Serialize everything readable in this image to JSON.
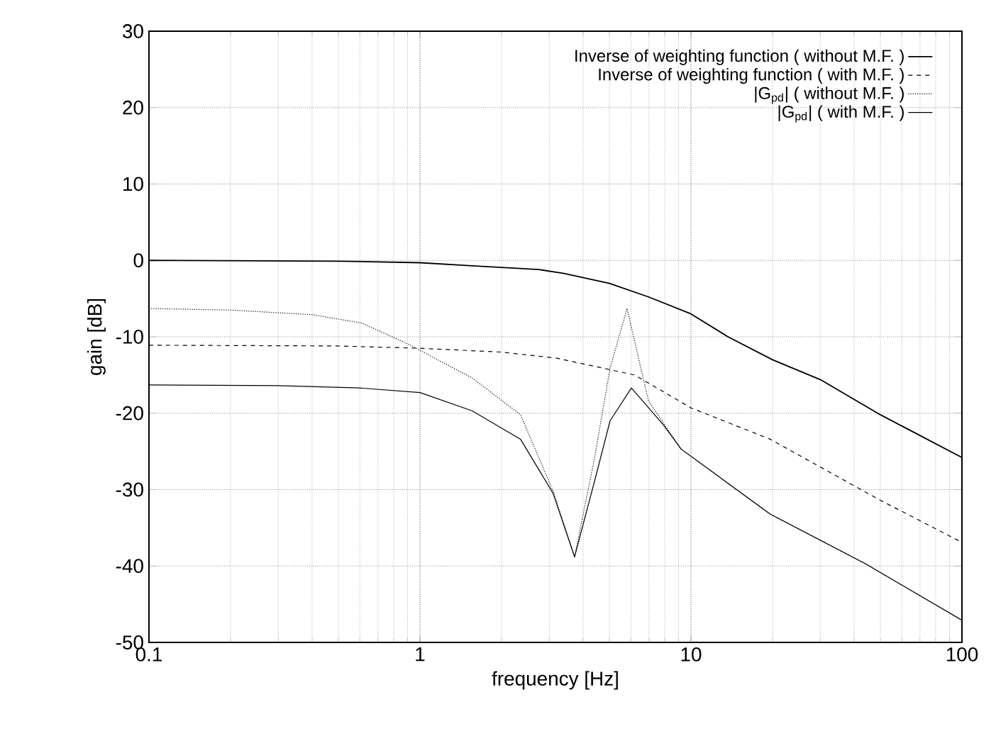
{
  "chart_data": {
    "type": "line",
    "xlabel": "frequency [Hz]",
    "ylabel": "gain [dB]",
    "log": "x",
    "grid": true,
    "legend": "top right",
    "marker": "none",
    "xlim": [
      0.1,
      100
    ],
    "xticks": [
      0.1,
      1,
      10,
      100
    ],
    "ylim": [
      -50,
      30
    ],
    "yticks": [
      -50,
      -40,
      -30,
      -20,
      -10,
      0,
      10,
      20,
      30
    ],
    "series": [
      {
        "name": "Inverse of weighting function ( without M.F. )",
        "color": "#000000",
        "line_style": "solid",
        "x": [
          0.1,
          0.5,
          1,
          1.56,
          2.75,
          3.4,
          5,
          7,
          10,
          13.7,
          20,
          30,
          50,
          100
        ],
        "values": [
          0,
          -0.1,
          -0.3,
          -0.7,
          -1.2,
          -1.7,
          -3,
          -4.8,
          -7,
          -10,
          -13,
          -15.6,
          -20.2,
          -25.8
        ]
      },
      {
        "name": "Inverse of weighting function ( with M.F. )",
        "color": "#000000",
        "line_style": "dashed",
        "x": [
          0.1,
          0.5,
          1,
          2,
          3.2,
          6.2,
          10,
          19.6,
          50,
          100
        ],
        "values": [
          -11.1,
          -11.2,
          -11.5,
          -12,
          -12.8,
          -15,
          -19.3,
          -23.4,
          -31.4,
          -36.9
        ]
      },
      {
        "name": "|G$_{pd}$| ( without M.F. )",
        "color": "#000000",
        "line_style": "dotted",
        "x": [
          0.1,
          0.2,
          0.4,
          0.61,
          0.91,
          1.56,
          2.35,
          3.1,
          3.72,
          4.4,
          5.03,
          5.81,
          6.97,
          9.2,
          19.6,
          44,
          100
        ],
        "values": [
          -6.3,
          -6.5,
          -7.1,
          -8.2,
          -11,
          -15.4,
          -20.2,
          -30.2,
          -38.8,
          -26,
          -14.1,
          -6.3,
          -18.4,
          -24.7,
          -33.2,
          -39.7,
          -47.1
        ]
      },
      {
        "name": "|G$_{pd}$| ( with M.F. )",
        "color": "#000000",
        "line_style": "solid",
        "x": [
          0.1,
          0.3,
          0.6,
          1,
          1.56,
          2.35,
          3.1,
          3.72,
          4.4,
          5.03,
          6.03,
          7.9,
          9.2,
          19.6,
          44,
          100
        ],
        "values": [
          -16.3,
          -16.4,
          -16.7,
          -17.3,
          -19.7,
          -23.4,
          -30.5,
          -38.8,
          -29,
          -21,
          -16.7,
          -21.5,
          -24.7,
          -33.2,
          -39.7,
          -47.1
        ]
      }
    ]
  }
}
